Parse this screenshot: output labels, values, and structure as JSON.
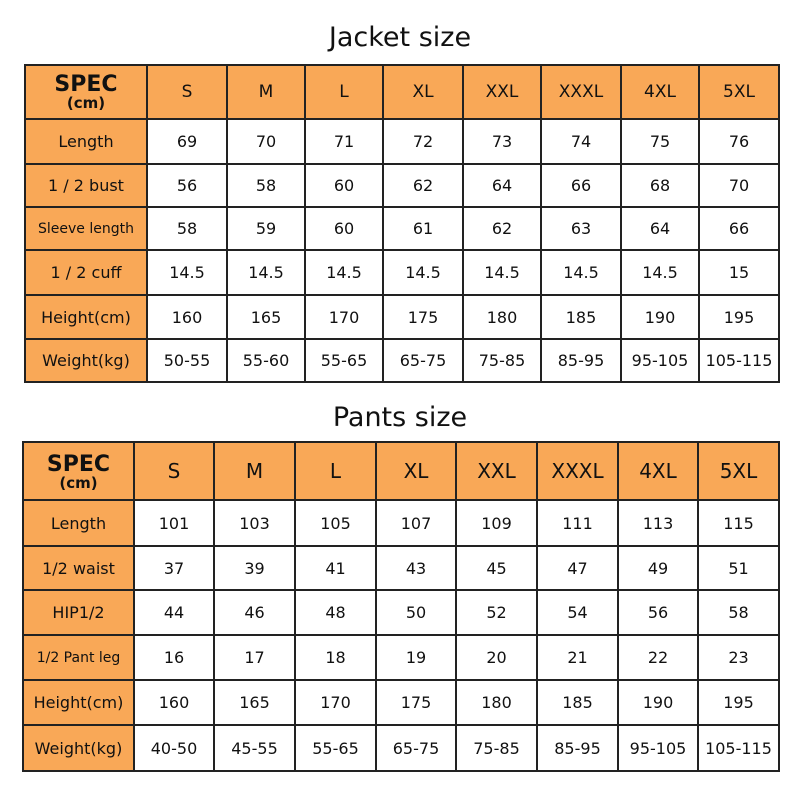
{
  "accent_color": "#F9A857",
  "jacket": {
    "title": "Jacket size",
    "spec": "SPEC",
    "unit": "(cm)",
    "sizes": [
      "S",
      "M",
      "L",
      "XL",
      "XXL",
      "XXXL",
      "4XL",
      "5XL"
    ],
    "rows": [
      {
        "label": "Length",
        "values": [
          "69",
          "70",
          "71",
          "72",
          "73",
          "74",
          "75",
          "76"
        ]
      },
      {
        "label": "1 / 2 bust",
        "values": [
          "56",
          "58",
          "60",
          "62",
          "64",
          "66",
          "68",
          "70"
        ]
      },
      {
        "label": "Sleeve length",
        "values": [
          "58",
          "59",
          "60",
          "61",
          "62",
          "63",
          "64",
          "66"
        ]
      },
      {
        "label": "1 / 2 cuff",
        "values": [
          "14.5",
          "14.5",
          "14.5",
          "14.5",
          "14.5",
          "14.5",
          "14.5",
          "15"
        ]
      },
      {
        "label": "Height(cm)",
        "values": [
          "160",
          "165",
          "170",
          "175",
          "180",
          "185",
          "190",
          "195"
        ]
      },
      {
        "label": "Weight(kg)",
        "values": [
          "50-55",
          "55-60",
          "55-65",
          "65-75",
          "75-85",
          "85-95",
          "95-105",
          "105-115"
        ]
      }
    ]
  },
  "pants": {
    "title": "Pants size",
    "spec": "SPEC",
    "unit": "(cm)",
    "sizes": [
      "S",
      "M",
      "L",
      "XL",
      "XXL",
      "XXXL",
      "4XL",
      "5XL"
    ],
    "rows": [
      {
        "label": "Length",
        "values": [
          "101",
          "103",
          "105",
          "107",
          "109",
          "111",
          "113",
          "115"
        ]
      },
      {
        "label": "1/2 waist",
        "values": [
          "37",
          "39",
          "41",
          "43",
          "45",
          "47",
          "49",
          "51"
        ]
      },
      {
        "label": "HIP1/2",
        "values": [
          "44",
          "46",
          "48",
          "50",
          "52",
          "54",
          "56",
          "58"
        ]
      },
      {
        "label": "1/2 Pant leg",
        "values": [
          "16",
          "17",
          "18",
          "19",
          "20",
          "21",
          "22",
          "23"
        ]
      },
      {
        "label": "Height(cm)",
        "values": [
          "160",
          "165",
          "170",
          "175",
          "180",
          "185",
          "190",
          "195"
        ]
      },
      {
        "label": "Weight(kg)",
        "values": [
          "40-50",
          "45-55",
          "55-65",
          "65-75",
          "75-85",
          "85-95",
          "95-105",
          "105-115"
        ]
      }
    ]
  }
}
